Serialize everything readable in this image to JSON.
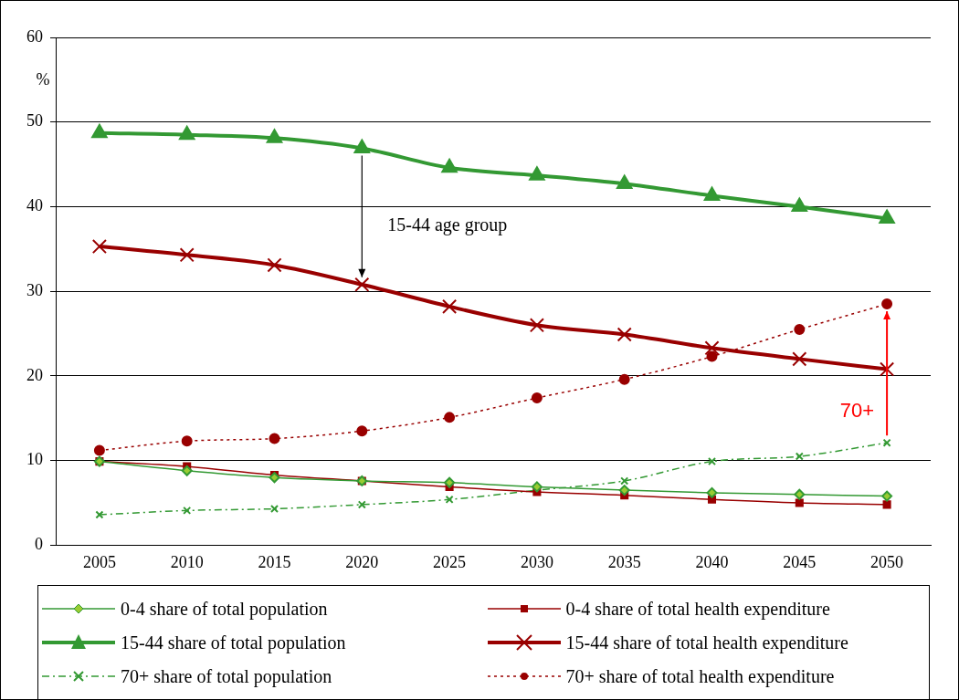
{
  "chart_data": {
    "type": "line",
    "ylabel": "%",
    "categories": [
      "2005",
      "2010",
      "2015",
      "2020",
      "2025",
      "2030",
      "2035",
      "2040",
      "2045",
      "2050"
    ],
    "ylim": [
      0,
      60
    ],
    "yticks": [
      0,
      10,
      20,
      30,
      40,
      50,
      60
    ],
    "grid": "y",
    "legend": "bottom",
    "series": [
      {
        "name": "0-4 share of total population",
        "color": "#339933",
        "marker": "diamond",
        "line_style": "solid",
        "values": [
          9.9,
          8.8,
          8.0,
          7.6,
          7.4,
          6.9,
          6.5,
          6.2,
          6.0,
          5.8
        ]
      },
      {
        "name": "0-4 share of total health expenditure",
        "color": "#990000",
        "marker": "square",
        "line_style": "solid",
        "values": [
          9.9,
          9.3,
          8.3,
          7.6,
          6.9,
          6.3,
          5.9,
          5.4,
          5.0,
          4.8
        ]
      },
      {
        "name": "15-44 share of total population",
        "color": "#339933",
        "marker": "triangle",
        "line_style": "solid",
        "values": [
          48.7,
          48.5,
          48.1,
          46.9,
          44.6,
          43.7,
          42.7,
          41.3,
          40.0,
          38.6
        ]
      },
      {
        "name": "15-44 share of total health expenditure",
        "color": "#990000",
        "marker": "cross",
        "line_style": "solid",
        "values": [
          35.3,
          34.3,
          33.1,
          30.8,
          28.2,
          26.0,
          24.9,
          23.3,
          22.0,
          20.8
        ]
      },
      {
        "name": "70+ share of total population",
        "color": "#339933",
        "marker": "cross",
        "line_style": "dashed",
        "values": [
          3.6,
          4.1,
          4.3,
          4.8,
          5.4,
          6.5,
          7.6,
          9.9,
          10.5,
          12.1
        ]
      },
      {
        "name": "70+ share of total health expenditure",
        "color": "#990000",
        "marker": "circle",
        "line_style": "dotted",
        "values": [
          11.2,
          12.3,
          12.6,
          13.5,
          15.1,
          17.4,
          19.6,
          22.3,
          25.5,
          28.5
        ]
      }
    ],
    "annotations": [
      "15-44 age group",
      {
        "text": "70+",
        "x": "2050",
        "y": 28.5
      }
    ]
  }
}
